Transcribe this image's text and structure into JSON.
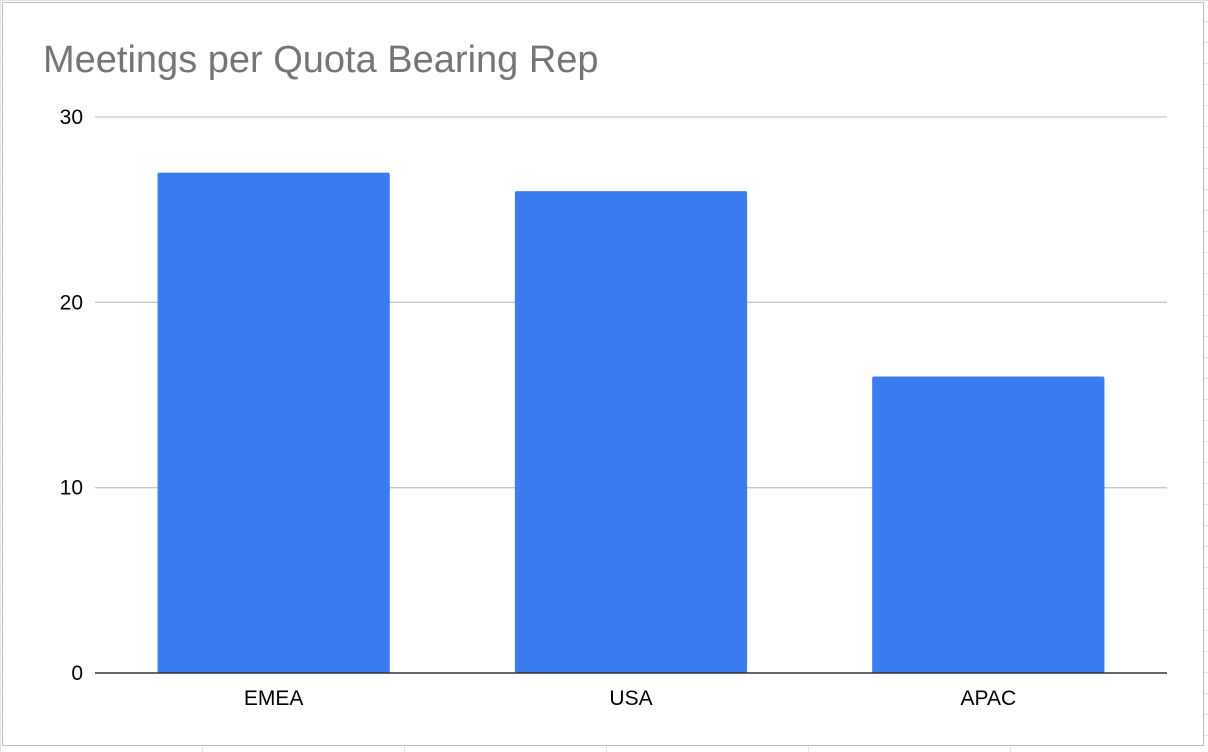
{
  "chart_data": {
    "type": "bar",
    "title": "Meetings per Quota Bearing Rep",
    "xlabel": "",
    "ylabel": "",
    "categories": [
      "EMEA",
      "USA",
      "APAC"
    ],
    "values": [
      27,
      26,
      16
    ],
    "ylim": [
      0,
      30
    ],
    "yticks": [
      0,
      10,
      20,
      30
    ],
    "grid": true,
    "legend": "none",
    "bar_color": "#3b7cf0",
    "grid_color": "#c6c6c6",
    "axis_color": "#333333"
  }
}
